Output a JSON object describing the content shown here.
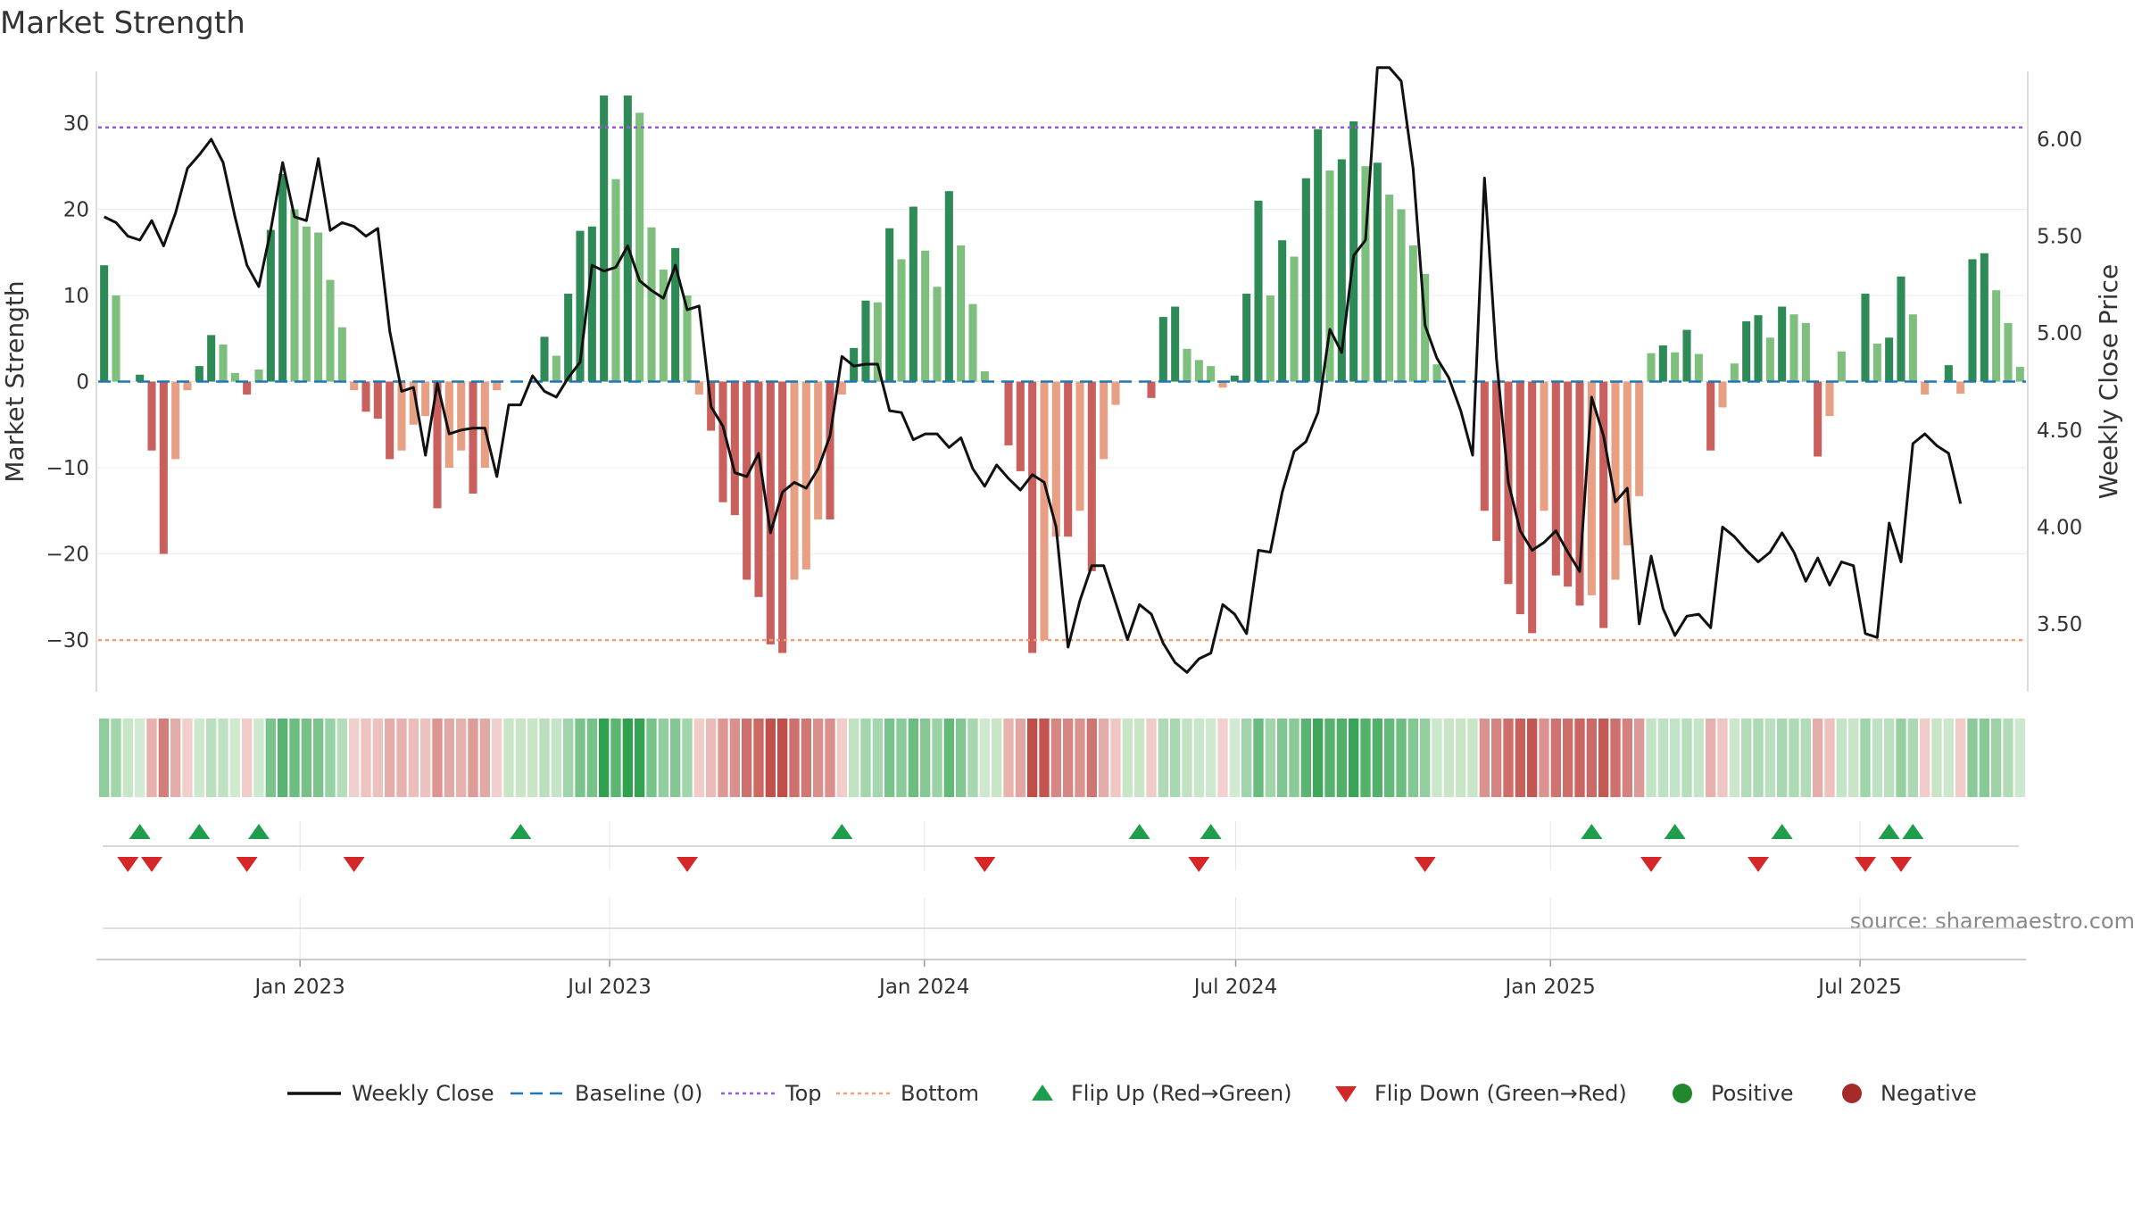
{
  "chart_data": {
    "type": "bar",
    "title": "Market Strength",
    "source": "source: sharemaestro.com",
    "ylabel_left": "Market Strength",
    "ylabel_right": "Weekly Close Price",
    "ylim_left": [
      -36,
      36
    ],
    "ylim_right": [
      3.15,
      6.35
    ],
    "yticks_left": [
      30,
      20,
      10,
      0,
      -10,
      -20,
      -30
    ],
    "ytick_labels_left": [
      "30",
      "20",
      "10",
      "0",
      "−10",
      "−20",
      "−30"
    ],
    "yticks_right": [
      6.0,
      5.5,
      5.0,
      4.5,
      4.0,
      3.5
    ],
    "ytick_labels_right": [
      "6.00",
      "5.50",
      "5.00",
      "4.50",
      "4.00",
      "3.50"
    ],
    "top_level": 29.5,
    "bottom_level": -30,
    "x_start": "2022-09-05",
    "x_end": "2025-10-06",
    "date_ticks": [
      {
        "label": "Jan 2023",
        "date": "2023-01-01"
      },
      {
        "label": "Jul 2023",
        "date": "2023-07-01"
      },
      {
        "label": "Jan 2024",
        "date": "2024-01-01"
      },
      {
        "label": "Jul 2024",
        "date": "2024-07-01"
      },
      {
        "label": "Jan 2025",
        "date": "2025-01-01"
      },
      {
        "label": "Jul 2025",
        "date": "2025-07-01"
      }
    ],
    "strength": [
      13.5,
      10,
      0,
      0.8,
      -8,
      -20,
      -9,
      -1,
      1.8,
      5.4,
      4.3,
      1,
      -1.5,
      1.4,
      17.6,
      24.1,
      20,
      18,
      17.3,
      11.8,
      6.3,
      -1,
      -3.5,
      -4.3,
      -9,
      -8,
      -5,
      -4,
      -14.7,
      -10,
      -8,
      -13,
      -10,
      -1,
      0,
      0,
      0,
      5.2,
      3,
      10.2,
      17.5,
      18,
      33.2,
      23.5,
      33.2,
      31.2,
      17.9,
      13,
      15.5,
      10,
      -1.5,
      -5.7,
      -14,
      -15.5,
      -23,
      -25,
      -30.5,
      -31.5,
      -23,
      -21.8,
      -16,
      -16,
      -1.5,
      3.9,
      9.4,
      9.2,
      17.8,
      14.2,
      20.3,
      15.2,
      11,
      22.1,
      15.8,
      9,
      1.2,
      0,
      -7.4,
      -10.4,
      -31.5,
      -30,
      -18,
      -18,
      -15,
      -22,
      -9,
      -2.7,
      0,
      0,
      -1.9,
      7.5,
      8.7,
      3.8,
      2.5,
      1.8,
      -0.7,
      0.7,
      10.2,
      21,
      10,
      16.4,
      14.5,
      23.6,
      29.3,
      24.5,
      25.8,
      30.2,
      25,
      25.4,
      21.7,
      20,
      15.8,
      12.5,
      2,
      0,
      0,
      0,
      -15,
      -18.5,
      -23.5,
      -27,
      -29.2,
      -15,
      -22.5,
      -23.8,
      -26,
      -24.8,
      -28.6,
      -23,
      -19,
      -13.3,
      3.3,
      4.2,
      3.4,
      6,
      3.2,
      -8,
      -3,
      2.1,
      7,
      7.7,
      5.1,
      8.7,
      7.8,
      6.8,
      -8.7,
      -4,
      3.5,
      0,
      10.2,
      4.4,
      5.1,
      12.2,
      7.8,
      -1.5,
      0,
      1.9,
      -1.4,
      14.2,
      14.9,
      10.6,
      6.8,
      1.7
    ],
    "close": [
      5.6,
      5.57,
      5.5,
      5.48,
      5.58,
      5.45,
      5.62,
      5.85,
      5.92,
      6.0,
      5.88,
      5.6,
      5.35,
      5.24,
      5.53,
      5.88,
      5.6,
      5.58,
      5.9,
      5.53,
      5.57,
      5.55,
      5.5,
      5.54,
      5.01,
      4.7,
      4.72,
      4.37,
      4.74,
      4.48,
      4.5,
      4.51,
      4.51,
      4.26,
      4.63,
      4.63,
      4.78,
      4.7,
      4.67,
      4.77,
      4.85,
      5.35,
      5.32,
      5.34,
      5.45,
      5.27,
      5.22,
      5.18,
      5.35,
      5.12,
      5.14,
      4.62,
      4.52,
      4.28,
      4.26,
      4.38,
      3.97,
      4.18,
      4.23,
      4.2,
      4.3,
      4.47,
      4.88,
      4.83,
      4.84,
      4.84,
      4.6,
      4.59,
      4.45,
      4.48,
      4.48,
      4.41,
      4.46,
      4.3,
      4.21,
      4.32,
      4.25,
      4.19,
      4.27,
      4.23,
      4.0,
      3.38,
      3.62,
      3.8,
      3.8,
      3.61,
      3.42,
      3.6,
      3.55,
      3.4,
      3.3,
      3.25,
      3.32,
      3.35,
      3.6,
      3.55,
      3.45,
      3.88,
      3.87,
      4.18,
      4.39,
      4.44,
      4.59,
      5.02,
      4.9,
      5.4,
      5.48,
      6.37,
      6.37,
      6.3,
      5.85,
      5.04,
      4.87,
      4.77,
      4.6,
      4.37,
      5.8,
      4.87,
      4.23,
      3.98,
      3.88,
      3.92,
      3.98,
      3.87,
      3.77,
      4.67,
      4.47,
      4.13,
      4.2,
      3.5,
      3.85,
      3.58,
      3.44,
      3.54,
      3.55,
      3.48,
      4.0,
      3.95,
      3.88,
      3.82,
      3.87,
      3.97,
      3.87,
      3.72,
      3.84,
      3.7,
      3.82,
      3.8,
      3.45,
      3.43,
      4.02,
      3.82,
      4.43,
      4.48,
      4.42,
      4.38,
      4.12
    ],
    "flip_up": [
      3,
      8,
      13,
      35,
      62,
      87,
      93,
      125,
      132,
      141,
      150,
      152
    ],
    "flip_down": [
      2,
      4,
      12,
      21,
      49,
      74,
      92,
      111,
      130,
      139,
      148,
      151
    ],
    "series": [
      {
        "name": "Weekly Close",
        "color": "#111111"
      },
      {
        "name": "Baseline (0)",
        "color": "#1f77b4"
      },
      {
        "name": "Top",
        "color": "#9b59d0"
      },
      {
        "name": "Bottom",
        "color": "#f0a070"
      },
      {
        "name": "Flip Up (Red→Green)",
        "color": "#1e9e4c"
      },
      {
        "name": "Flip Down (Green→Red)",
        "color": "#d62728"
      },
      {
        "name": "Positive",
        "color": "#22882e"
      },
      {
        "name": "Negative",
        "color": "#a52a2a"
      }
    ]
  }
}
